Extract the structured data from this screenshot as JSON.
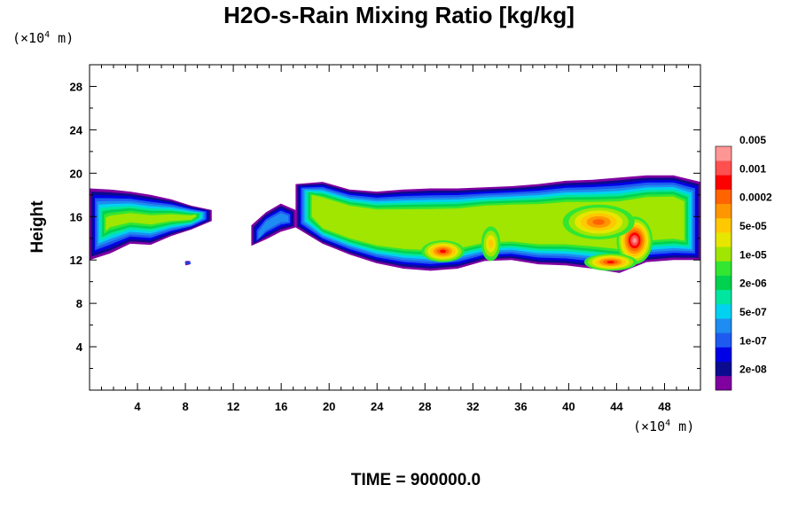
{
  "chart_data": {
    "type": "heatmap",
    "title": "H2O-s-Rain Mixing Ratio [kg/kg]",
    "ylabel": "Height",
    "x_unit_prefix": "(×10",
    "x_unit_exp": "4",
    "x_unit_suffix": " m)",
    "y_unit_prefix": "(×10",
    "y_unit_exp": "4",
    "y_unit_suffix": " m)",
    "xlim": [
      0,
      51
    ],
    "ylim": [
      0,
      30
    ],
    "x_ticks": [
      "4",
      "8",
      "12",
      "16",
      "20",
      "24",
      "28",
      "32",
      "36",
      "40",
      "44",
      "48"
    ],
    "x_tick_values": [
      4,
      8,
      12,
      16,
      20,
      24,
      28,
      32,
      36,
      40,
      44,
      48
    ],
    "y_ticks": [
      "4",
      "8",
      "12",
      "16",
      "20",
      "24",
      "28"
    ],
    "y_tick_values": [
      4,
      8,
      12,
      16,
      20,
      24,
      28
    ],
    "colorbar": {
      "colors": [
        "#8000A0",
        "#0B0B8F",
        "#0000E6",
        "#1E5AF0",
        "#1E8CF0",
        "#00D2F0",
        "#00E6A0",
        "#00D250",
        "#32E632",
        "#A0E600",
        "#E6E600",
        "#FFC800",
        "#FF9600",
        "#FF6400",
        "#FF0000",
        "#FF5050",
        "#FF9696"
      ],
      "labels": [
        "2e-08",
        "1e-07",
        "5e-07",
        "2e-06",
        "1e-05",
        "5e-05",
        "0.0002",
        "0.001",
        "0.005"
      ]
    },
    "cloud_regions": [
      {
        "x_start": 0,
        "x_end": 10.2,
        "bottom": [
          12,
          12.6,
          13.5,
          13.4,
          14.2,
          14.8,
          15.6
        ],
        "top": [
          18.6,
          18.5,
          18.3,
          18.0,
          17.6,
          17.0,
          16.6
        ],
        "peak_level": 9
      },
      {
        "x_start": 13.5,
        "x_end": 17.2,
        "bottom": [
          13.3,
          13.9,
          14.6,
          15.0
        ],
        "top": [
          15.2,
          16.4,
          17.2,
          16.6
        ],
        "peak_level": 4
      },
      {
        "x_start": 17.2,
        "x_end": 51,
        "bottom": [
          15.0,
          13.5,
          12.5,
          11.7,
          11.2,
          11.0,
          11.2,
          11.9,
          12.0,
          11.6,
          11.5,
          11.2,
          10.8,
          11.8,
          12.0,
          12.0
        ],
        "top": [
          19.0,
          19.2,
          18.5,
          18.3,
          18.5,
          18.6,
          18.6,
          18.7,
          18.8,
          19.0,
          19.3,
          19.4,
          19.6,
          19.8,
          19.8,
          19.2
        ],
        "peak_level": 16
      },
      {
        "x_start": 8.0,
        "x_end": 8.4,
        "bottom": [
          11.5,
          11.6
        ],
        "top": [
          11.9,
          11.9
        ],
        "peak_level": 3
      }
    ],
    "intense_cores": [
      {
        "x": 29.5,
        "y": 12.8,
        "rx": 1.8,
        "ry": 1.0,
        "peak_level": 14
      },
      {
        "x": 45.5,
        "y": 13.8,
        "rx": 1.5,
        "ry": 2.2,
        "peak_level": 16
      },
      {
        "x": 43.5,
        "y": 11.8,
        "rx": 2.2,
        "ry": 0.8,
        "peak_level": 14
      },
      {
        "x": 42.5,
        "y": 15.5,
        "rx": 3.0,
        "ry": 1.6,
        "peak_level": 13
      },
      {
        "x": 33.5,
        "y": 13.5,
        "rx": 0.8,
        "ry": 1.6,
        "peak_level": 11
      }
    ]
  },
  "time_label": "TIME = 900000.0"
}
